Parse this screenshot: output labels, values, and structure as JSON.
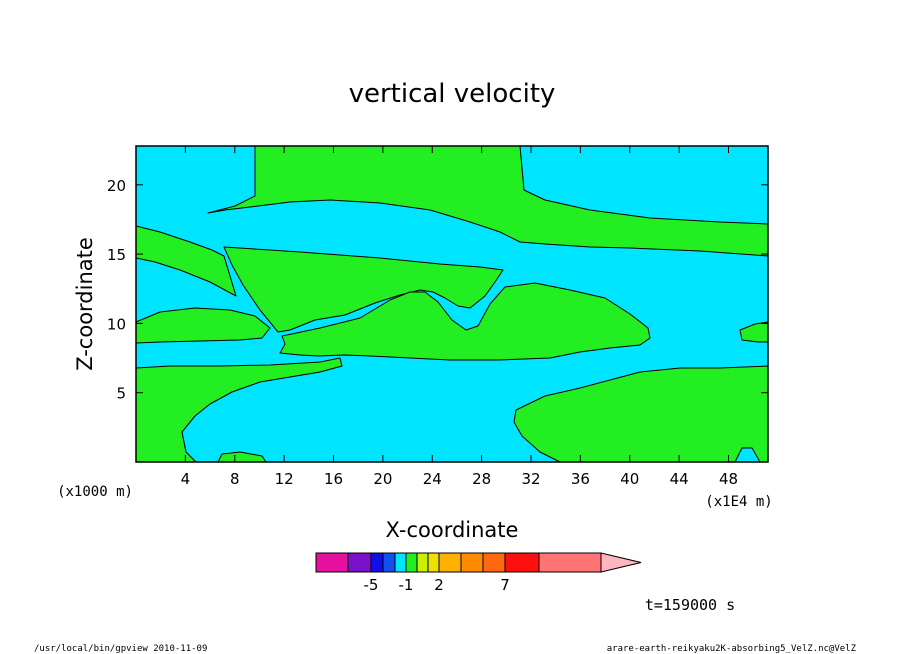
{
  "chart_data": {
    "type": "heatmap",
    "title": "vertical velocity",
    "xlabel": "X-coordinate",
    "ylabel": "Z-coordinate",
    "x_unit_label": "(x1E4 m)",
    "y_unit_label": "(x1000 m)",
    "xlim": [
      0,
      51.2
    ],
    "ylim": [
      0,
      22.8
    ],
    "x_ticks": [
      4,
      8,
      12,
      16,
      20,
      24,
      28,
      32,
      36,
      40,
      44,
      48
    ],
    "y_ticks": [
      5,
      10,
      15,
      20
    ],
    "colors": {
      "background_field": "#00e5ff",
      "positive_region": "#22ee22",
      "outline": "#000000"
    },
    "colorbar": {
      "colors": [
        "#e6109e",
        "#7a10c8",
        "#1010e6",
        "#1050f0",
        "#00e5ff",
        "#22ee22",
        "#c8f000",
        "#f0e000",
        "#ffb000",
        "#ff8c00",
        "#ff6a10",
        "#ff1010",
        "#ff7575"
      ],
      "end_arrow_color": "#ffb6c1",
      "labels": [
        {
          "text": "-5",
          "index": 1
        },
        {
          "text": "-1",
          "index": 4
        },
        {
          "text": "2",
          "index": 7
        },
        {
          "text": "7",
          "index": 10
        }
      ]
    },
    "time_label": "t=159000 s",
    "footer_left": "/usr/local/bin/gpview  2010-11-09",
    "footer_right": "arare-earth-reikyaku2K-absorbing5_VelZ.nc@VelZ"
  }
}
